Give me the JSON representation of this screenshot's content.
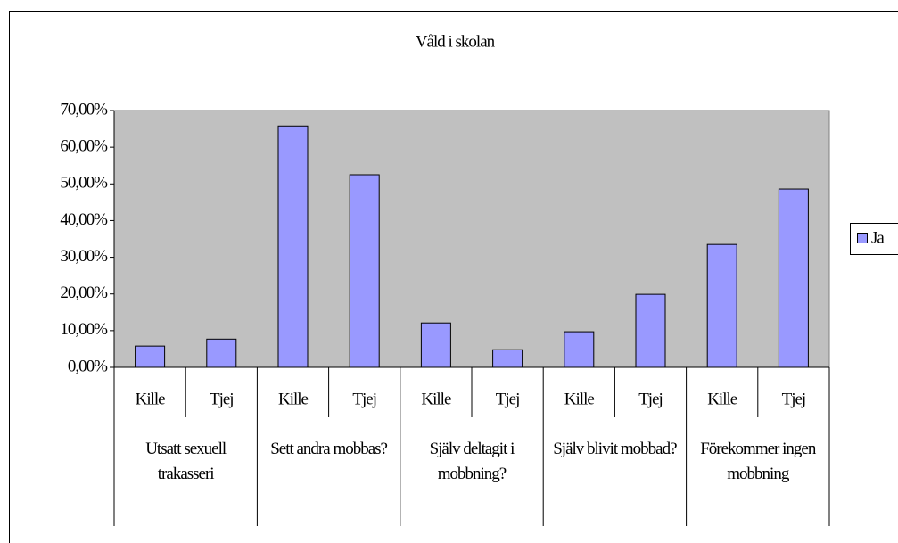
{
  "chart_data": {
    "type": "bar",
    "title": "Våld i skolan",
    "categories": [
      "Kille",
      "Tjej",
      "Kille",
      "Tjej",
      "Kille",
      "Tjej",
      "Kille",
      "Tjej",
      "Kille",
      "Tjej"
    ],
    "groups": [
      "Utsatt sexuell trakasseri",
      "Sett andra mobbas?",
      "Själv deltagit i mobbning?",
      "Själv blivit mobbad?",
      "Förekommer ingen mobbning"
    ],
    "series": [
      {
        "name": "Ja",
        "color": "#9999ff",
        "values": [
          5.8,
          7.7,
          65.8,
          52.5,
          12.1,
          4.8,
          9.7,
          19.9,
          33.5,
          48.6
        ]
      }
    ],
    "ylim": [
      0,
      70
    ],
    "yticks": [
      {
        "value": 0,
        "label": "0,00%"
      },
      {
        "value": 10,
        "label": "10,00%"
      },
      {
        "value": 20,
        "label": "20,00%"
      },
      {
        "value": 30,
        "label": "30,00%"
      },
      {
        "value": 40,
        "label": "40,00%"
      },
      {
        "value": 50,
        "label": "50,00%"
      },
      {
        "value": 60,
        "label": "60,00%"
      },
      {
        "value": 70,
        "label": "70,00%"
      }
    ],
    "legend": "right"
  }
}
